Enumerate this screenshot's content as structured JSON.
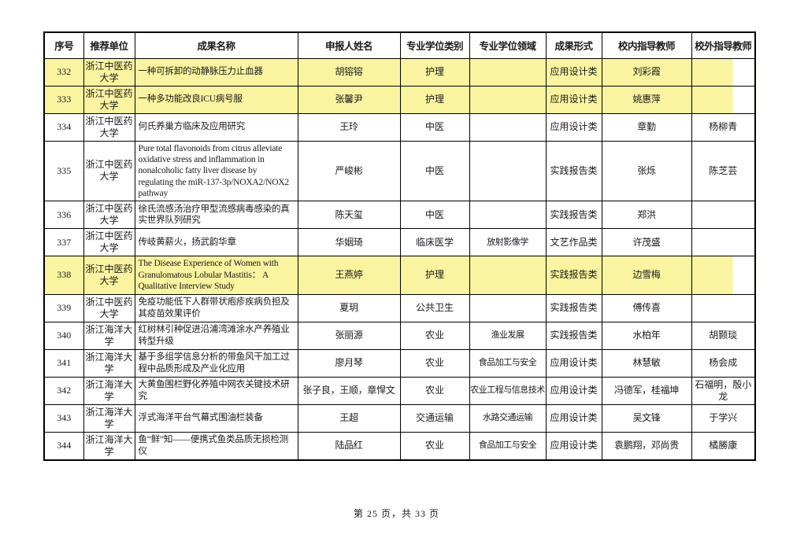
{
  "colors": {
    "highlight": "#FAF4A0"
  },
  "table": {
    "headers": [
      "序号",
      "推荐单位",
      "成果名称",
      "申报人姓名",
      "专业学位类别",
      "专业学位领域",
      "成果形式",
      "校内指导教师",
      "校外指导教师"
    ],
    "rows": [
      {
        "id": "332",
        "unit": "浙江中医药大学",
        "title": "一种可拆卸的动静脉压力止血器",
        "applicant": "胡镕镕",
        "degree_category": "护理",
        "degree_field": "",
        "form": "应用设计类",
        "internal_advisor": "刘彩霞",
        "external_advisor": "",
        "highlighted": true
      },
      {
        "id": "333",
        "unit": "浙江中医药大学",
        "title": "一种多功能改良ICU病号服",
        "applicant": "张馨尹",
        "degree_category": "护理",
        "degree_field": "",
        "form": "应用设计类",
        "internal_advisor": "姚惠萍",
        "external_advisor": "",
        "highlighted": true
      },
      {
        "id": "334",
        "unit": "浙江中医药大学",
        "title": "何氏养巢方临床及应用研究",
        "applicant": "王玲",
        "degree_category": "中医",
        "degree_field": "",
        "form": "应用设计类",
        "internal_advisor": "章勤",
        "external_advisor": "杨柳青",
        "highlighted": false
      },
      {
        "id": "335",
        "unit": "浙江中医药大学",
        "title": "Pure total flavonoids from citrus alleviate oxidative stress and inflammation in nonalcoholic fatty liver disease by regulating the miR-137-3p/NOXA2/NOX2 pathway",
        "applicant": "严峻彬",
        "degree_category": "中医",
        "degree_field": "",
        "form": "实践报告类",
        "internal_advisor": "张烁",
        "external_advisor": "陈芝芸",
        "highlighted": false
      },
      {
        "id": "336",
        "unit": "浙江中医药大学",
        "title": "徐氏流感汤治疗甲型流感病毒感染的真实世界队列研究",
        "applicant": "陈天玺",
        "degree_category": "中医",
        "degree_field": "",
        "form": "实践报告类",
        "internal_advisor": "郑洪",
        "external_advisor": "",
        "highlighted": false
      },
      {
        "id": "337",
        "unit": "浙江中医药大学",
        "title": "传岐黄薪火，扬武韵华章",
        "applicant": "华姻琦",
        "degree_category": "临床医学",
        "degree_field": "放射影像学",
        "form": "文艺作品类",
        "internal_advisor": "许茂盛",
        "external_advisor": "",
        "highlighted": false
      },
      {
        "id": "338",
        "unit": "浙江中医药大学",
        "title": "The Disease Experience of Women with Granulomatous Lobular Mastitis： A Qualitative Interview Study",
        "applicant": "王燕婷",
        "degree_category": "护理",
        "degree_field": "",
        "form": "实践报告类",
        "internal_advisor": "边雪梅",
        "external_advisor": "",
        "highlighted": true
      },
      {
        "id": "339",
        "unit": "浙江中医药大学",
        "title": "免疫功能低下人群带状疱疹疾病负担及其疫苗效果评价",
        "applicant": "夏玥",
        "degree_category": "公共卫生",
        "degree_field": "",
        "form": "实践报告类",
        "internal_advisor": "傅传喜",
        "external_advisor": "",
        "highlighted": false
      },
      {
        "id": "340",
        "unit": "浙江海洋大学",
        "title": "红树林引种促进沿浦湾滩涂水产养殖业转型升级",
        "applicant": "张丽源",
        "degree_category": "农业",
        "degree_field": "渔业发展",
        "form": "实践报告类",
        "internal_advisor": "水柏年",
        "external_advisor": "胡颢琰",
        "highlighted": false
      },
      {
        "id": "341",
        "unit": "浙江海洋大学",
        "title": "基于多组学信息分析的带鱼风干加工过程中品质形成及产业化应用",
        "applicant": "廖月琴",
        "degree_category": "农业",
        "degree_field": "食品加工与安全",
        "form": "应用设计类",
        "internal_advisor": "林慧敏",
        "external_advisor": "杨会成",
        "highlighted": false
      },
      {
        "id": "342",
        "unit": "浙江海洋大学",
        "title": "大黄鱼围栏野化养殖中网衣关键技术研究",
        "applicant": "张子良，王顺，章悍文",
        "degree_category": "农业",
        "degree_field": "农业工程与信息技术",
        "form": "应用设计类",
        "internal_advisor": "冯德军，桂福坤",
        "external_advisor": "石福明，殷小龙",
        "highlighted": false
      },
      {
        "id": "343",
        "unit": "浙江海洋大学",
        "title": "浮式海洋平台气幕式围油栏装备",
        "applicant": "王超",
        "degree_category": "交通运输",
        "degree_field": "水路交通运输",
        "form": "应用设计类",
        "internal_advisor": "吴文锋",
        "external_advisor": "于学兴",
        "highlighted": false
      },
      {
        "id": "344",
        "unit": "浙江海洋大学",
        "title": "鱼“鲜”知——便携式鱼类品质无损检测仪",
        "applicant": "陆品红",
        "degree_category": "农业",
        "degree_field": "食品加工与安全",
        "form": "应用设计类",
        "internal_advisor": "袁鹏翔，邓尚贵",
        "external_advisor": "橘勝康",
        "highlighted": false
      }
    ]
  },
  "footer": {
    "page_info": "第 25 页，共 33 页"
  }
}
